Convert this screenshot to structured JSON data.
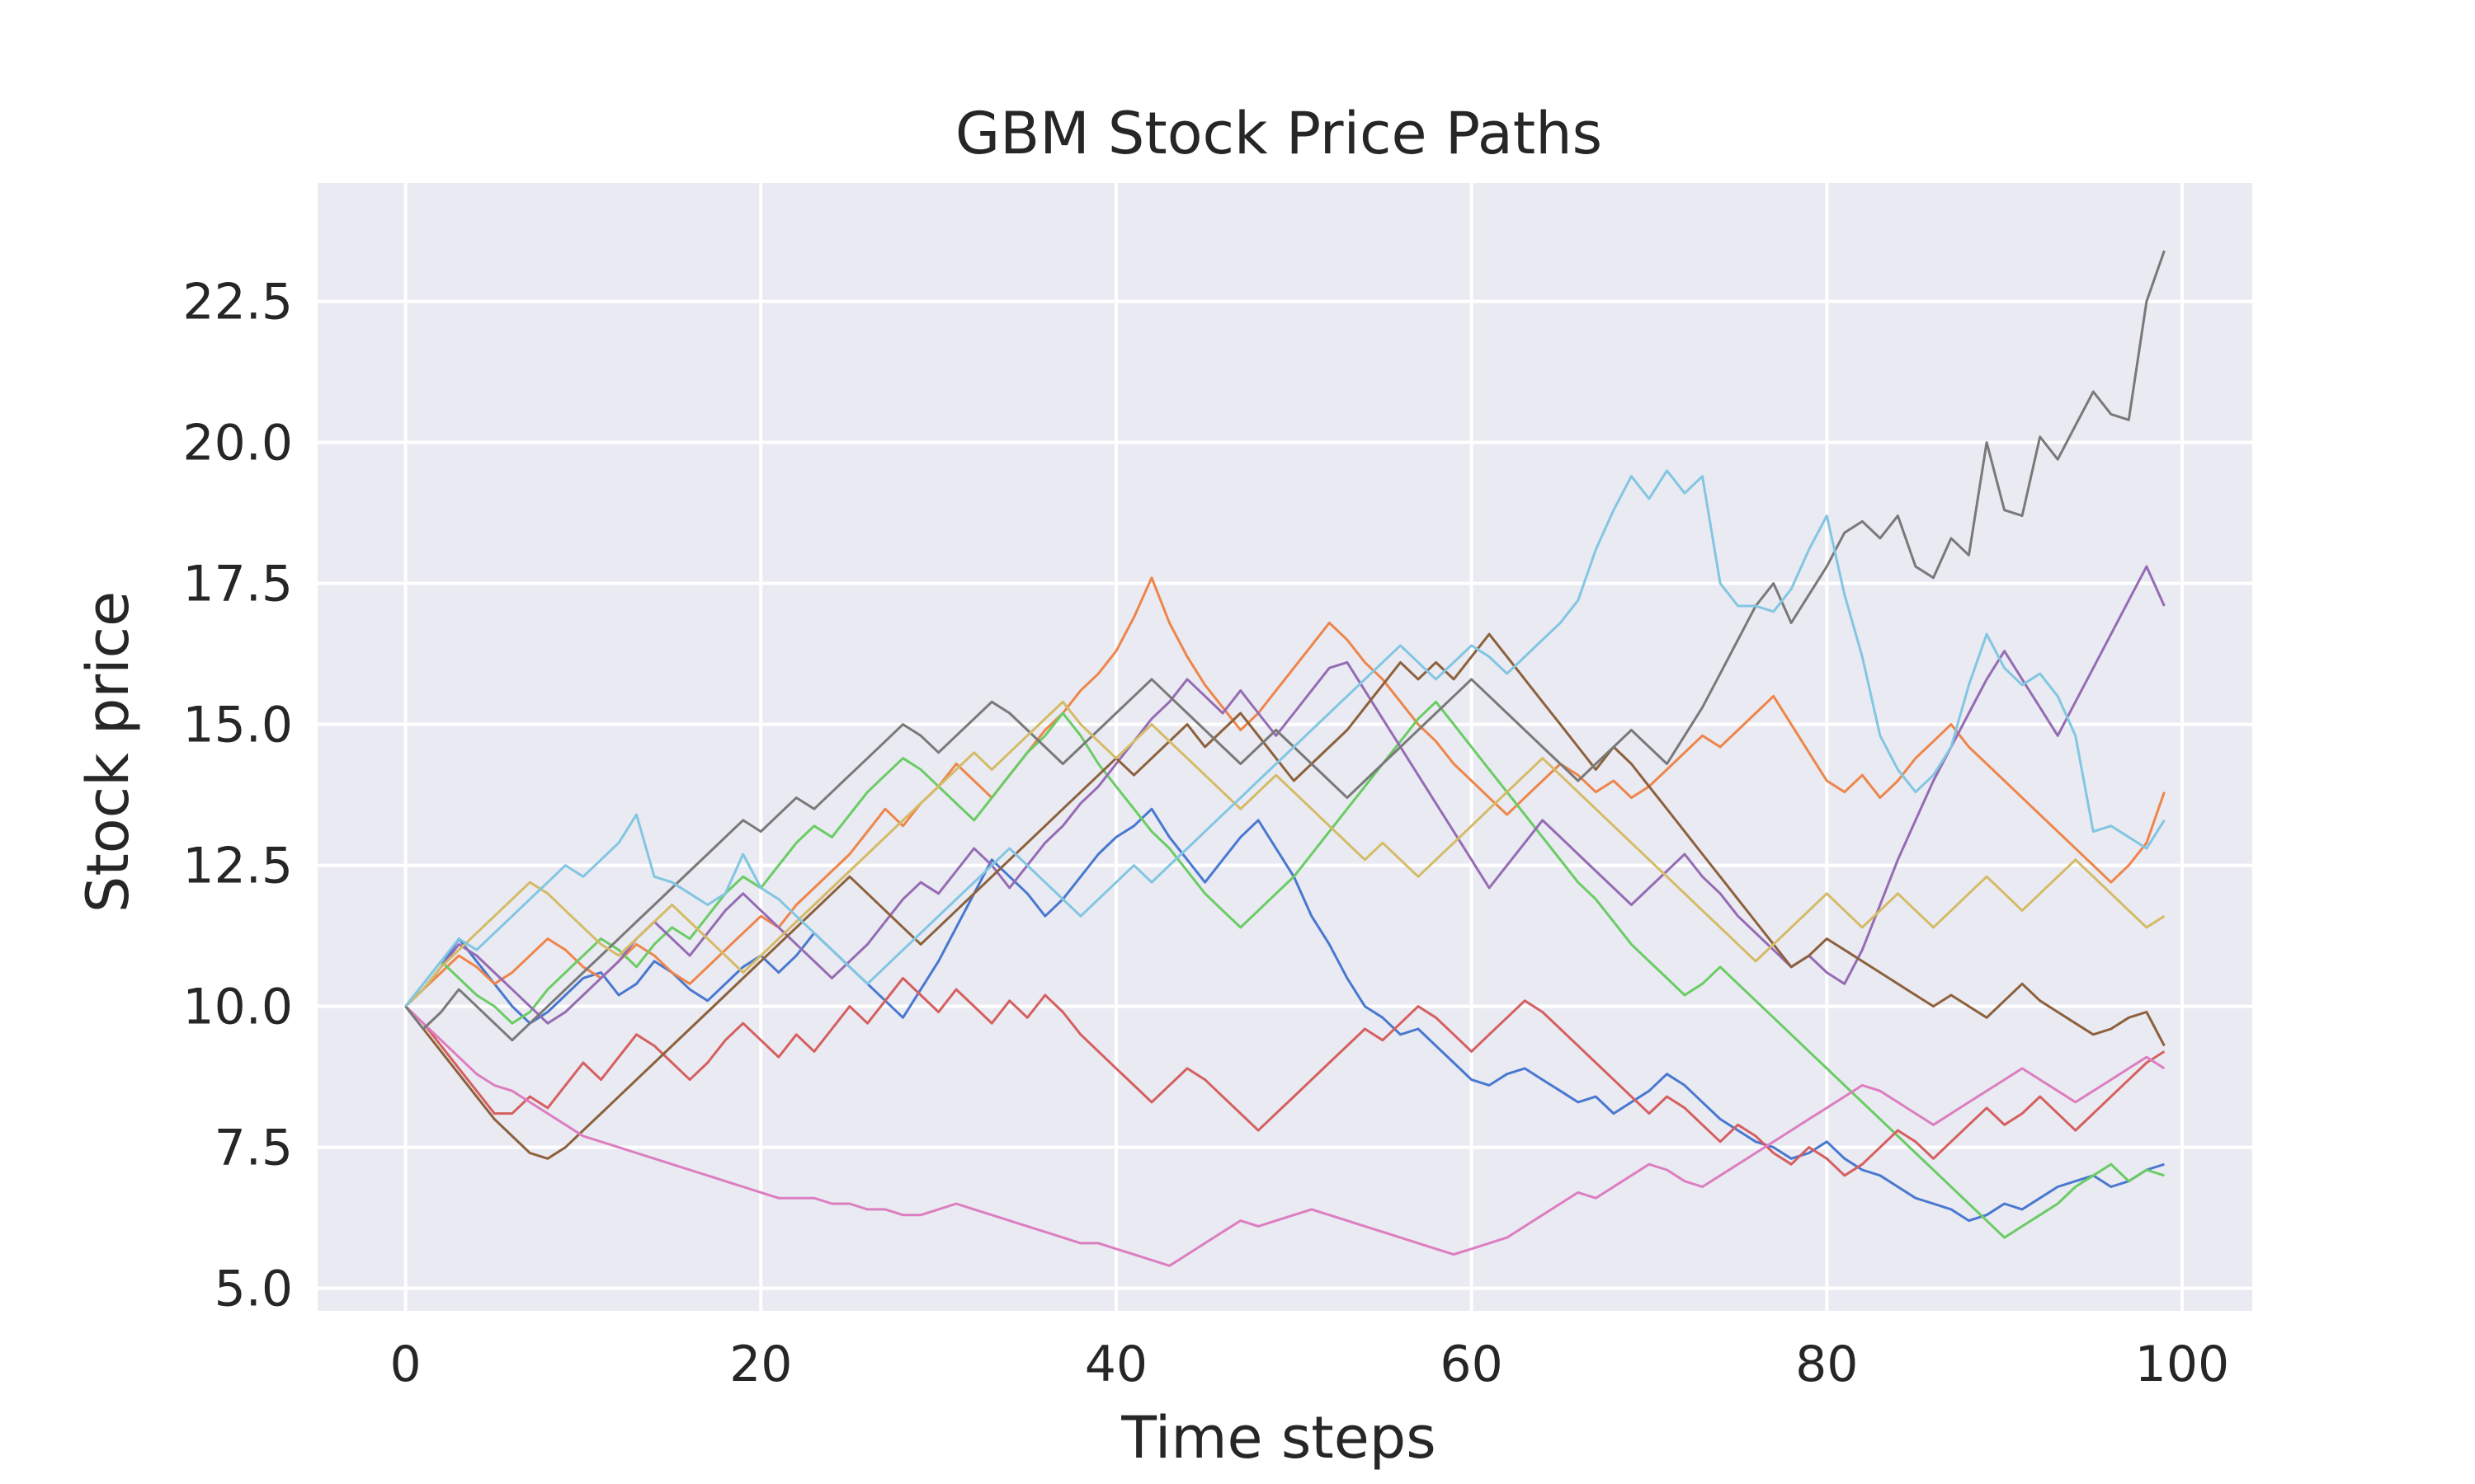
{
  "chart_data": {
    "type": "line",
    "title": "GBM Stock Price Paths",
    "xlabel": "Time steps",
    "ylabel": "Stock price",
    "xlim": [
      -4.95,
      103.95
    ],
    "ylim": [
      4.6,
      24.6
    ],
    "xticks": [
      0,
      20,
      40,
      60,
      80,
      100
    ],
    "yticks": [
      5.0,
      7.5,
      10.0,
      12.5,
      15.0,
      17.5,
      20.0,
      22.5
    ],
    "xtick_labels": [
      "0",
      "20",
      "40",
      "60",
      "80",
      "100"
    ],
    "ytick_labels": [
      "5.0",
      "7.5",
      "10.0",
      "12.5",
      "15.0",
      "17.5",
      "20.0",
      "22.5"
    ],
    "grid": true,
    "legend": "none",
    "background": "#eaeaf2",
    "grid_color": "#ffffff",
    "colors": [
      "#4878d0",
      "#ee854a",
      "#6acc64",
      "#d65f5f",
      "#956cb4",
      "#8c613c",
      "#dc7ec0",
      "#797979",
      "#d5bb67",
      "#82c6e2"
    ],
    "x_range": [
      0,
      99
    ],
    "series": [
      {
        "color": "#4878d0",
        "values": [
          10.0,
          10.3,
          10.7,
          11.2,
          10.8,
          10.4,
          10.0,
          9.7,
          9.9,
          10.2,
          10.5,
          10.6,
          10.2,
          10.4,
          10.8,
          10.6,
          10.3,
          10.1,
          10.4,
          10.7,
          10.9,
          10.6,
          10.9,
          11.3,
          11.0,
          10.7,
          10.4,
          10.1,
          9.8,
          10.3,
          10.8,
          11.4,
          12.0,
          12.6,
          12.3,
          12.0,
          11.6,
          11.9,
          12.3,
          12.7,
          13.0,
          13.2,
          13.5,
          13.0,
          12.6,
          12.2,
          12.6,
          13.0,
          13.3,
          12.8,
          12.3,
          11.6,
          11.1,
          10.5,
          10.0,
          9.8,
          9.5,
          9.6,
          9.3,
          9.0,
          8.7,
          8.6,
          8.8,
          8.9,
          8.7,
          8.5,
          8.3,
          8.4,
          8.1,
          8.3,
          8.5,
          8.8,
          8.6,
          8.3,
          8.0,
          7.8,
          7.6,
          7.5,
          7.3,
          7.4,
          7.6,
          7.3,
          7.1,
          7.0,
          6.8,
          6.6,
          6.5,
          6.4,
          6.2,
          6.3,
          6.5,
          6.4,
          6.6,
          6.8,
          6.9,
          7.0,
          6.8,
          6.9,
          7.1,
          7.2
        ]
      },
      {
        "color": "#ee854a",
        "values": [
          10.0,
          10.3,
          10.6,
          10.9,
          10.7,
          10.4,
          10.6,
          10.9,
          11.2,
          11.0,
          10.7,
          10.5,
          10.8,
          11.1,
          10.9,
          10.6,
          10.4,
          10.7,
          11.0,
          11.3,
          11.6,
          11.4,
          11.8,
          12.1,
          12.4,
          12.7,
          13.1,
          13.5,
          13.2,
          13.6,
          13.9,
          14.3,
          14.0,
          13.7,
          14.1,
          14.5,
          14.9,
          15.2,
          15.6,
          15.9,
          16.3,
          16.9,
          17.6,
          16.8,
          16.2,
          15.7,
          15.3,
          14.9,
          15.2,
          15.6,
          16.0,
          16.4,
          16.8,
          16.5,
          16.1,
          15.8,
          15.4,
          15.0,
          14.7,
          14.3,
          14.0,
          13.7,
          13.4,
          13.7,
          14.0,
          14.3,
          14.1,
          13.8,
          14.0,
          13.7,
          13.9,
          14.2,
          14.5,
          14.8,
          14.6,
          14.9,
          15.2,
          15.5,
          15.0,
          14.5,
          14.0,
          13.8,
          14.1,
          13.7,
          14.0,
          14.4,
          14.7,
          15.0,
          14.6,
          14.3,
          14.0,
          13.7,
          13.4,
          13.1,
          12.8,
          12.5,
          12.2,
          12.5,
          12.9,
          13.8
        ]
      },
      {
        "color": "#6acc64",
        "values": [
          10.0,
          10.4,
          10.8,
          10.5,
          10.2,
          10.0,
          9.7,
          9.9,
          10.3,
          10.6,
          10.9,
          11.2,
          11.0,
          10.7,
          11.1,
          11.4,
          11.2,
          11.6,
          12.0,
          12.3,
          12.1,
          12.5,
          12.9,
          13.2,
          13.0,
          13.4,
          13.8,
          14.1,
          14.4,
          14.2,
          13.9,
          13.6,
          13.3,
          13.7,
          14.1,
          14.5,
          14.8,
          15.2,
          14.8,
          14.3,
          13.9,
          13.5,
          13.1,
          12.8,
          12.4,
          12.0,
          11.7,
          11.4,
          11.7,
          12.0,
          12.3,
          12.7,
          13.1,
          13.5,
          13.9,
          14.3,
          14.7,
          15.1,
          15.4,
          15.0,
          14.6,
          14.2,
          13.8,
          13.4,
          13.0,
          12.6,
          12.2,
          11.9,
          11.5,
          11.1,
          10.8,
          10.5,
          10.2,
          10.4,
          10.7,
          10.4,
          10.1,
          9.8,
          9.5,
          9.2,
          8.9,
          8.6,
          8.3,
          8.0,
          7.7,
          7.4,
          7.1,
          6.8,
          6.5,
          6.2,
          5.9,
          6.1,
          6.3,
          6.5,
          6.8,
          7.0,
          7.2,
          6.9,
          7.1,
          7.0
        ]
      },
      {
        "color": "#d65f5f",
        "values": [
          10.0,
          9.7,
          9.3,
          8.9,
          8.5,
          8.1,
          8.1,
          8.4,
          8.2,
          8.6,
          9.0,
          8.7,
          9.1,
          9.5,
          9.3,
          9.0,
          8.7,
          9.0,
          9.4,
          9.7,
          9.4,
          9.1,
          9.5,
          9.2,
          9.6,
          10.0,
          9.7,
          10.1,
          10.5,
          10.2,
          9.9,
          10.3,
          10.0,
          9.7,
          10.1,
          9.8,
          10.2,
          9.9,
          9.5,
          9.2,
          8.9,
          8.6,
          8.3,
          8.6,
          8.9,
          8.7,
          8.4,
          8.1,
          7.8,
          8.1,
          8.4,
          8.7,
          9.0,
          9.3,
          9.6,
          9.4,
          9.7,
          10.0,
          9.8,
          9.5,
          9.2,
          9.5,
          9.8,
          10.1,
          9.9,
          9.6,
          9.3,
          9.0,
          8.7,
          8.4,
          8.1,
          8.4,
          8.2,
          7.9,
          7.6,
          7.9,
          7.7,
          7.4,
          7.2,
          7.5,
          7.3,
          7.0,
          7.2,
          7.5,
          7.8,
          7.6,
          7.3,
          7.6,
          7.9,
          8.2,
          7.9,
          8.1,
          8.4,
          8.1,
          7.8,
          8.1,
          8.4,
          8.7,
          9.0,
          9.2
        ]
      },
      {
        "color": "#956cb4",
        "values": [
          10.0,
          10.3,
          10.7,
          11.1,
          10.9,
          10.6,
          10.3,
          10.0,
          9.7,
          9.9,
          10.2,
          10.5,
          10.8,
          11.2,
          11.5,
          11.2,
          10.9,
          11.3,
          11.7,
          12.0,
          11.7,
          11.4,
          11.1,
          10.8,
          10.5,
          10.8,
          11.1,
          11.5,
          11.9,
          12.2,
          12.0,
          12.4,
          12.8,
          12.5,
          12.1,
          12.5,
          12.9,
          13.2,
          13.6,
          13.9,
          14.3,
          14.7,
          15.1,
          15.4,
          15.8,
          15.5,
          15.2,
          15.6,
          15.2,
          14.8,
          15.2,
          15.6,
          16.0,
          16.1,
          15.6,
          15.1,
          14.6,
          14.1,
          13.6,
          13.1,
          12.6,
          12.1,
          12.5,
          12.9,
          13.3,
          13.0,
          12.7,
          12.4,
          12.1,
          11.8,
          12.1,
          12.4,
          12.7,
          12.3,
          12.0,
          11.6,
          11.3,
          11.0,
          10.7,
          10.9,
          10.6,
          10.4,
          11.0,
          11.8,
          12.6,
          13.3,
          14.0,
          14.6,
          15.2,
          15.8,
          16.3,
          15.8,
          15.3,
          14.8,
          15.4,
          16.0,
          16.6,
          17.2,
          17.8,
          17.1
        ]
      },
      {
        "color": "#8c613c",
        "values": [
          10.0,
          9.6,
          9.2,
          8.8,
          8.4,
          8.0,
          7.7,
          7.4,
          7.3,
          7.5,
          7.8,
          8.1,
          8.4,
          8.7,
          9.0,
          9.3,
          9.6,
          9.9,
          10.2,
          10.5,
          10.8,
          11.1,
          11.4,
          11.7,
          12.0,
          12.3,
          12.0,
          11.7,
          11.4,
          11.1,
          11.4,
          11.7,
          12.0,
          12.3,
          12.6,
          12.9,
          13.2,
          13.5,
          13.8,
          14.1,
          14.4,
          14.1,
          14.4,
          14.7,
          15.0,
          14.6,
          14.9,
          15.2,
          14.8,
          14.4,
          14.0,
          14.3,
          14.6,
          14.9,
          15.3,
          15.7,
          16.1,
          15.8,
          16.1,
          15.8,
          16.2,
          16.6,
          16.2,
          15.8,
          15.4,
          15.0,
          14.6,
          14.2,
          14.6,
          14.3,
          13.9,
          13.5,
          13.1,
          12.7,
          12.3,
          11.9,
          11.5,
          11.1,
          10.7,
          10.9,
          11.2,
          11.0,
          10.8,
          10.6,
          10.4,
          10.2,
          10.0,
          10.2,
          10.0,
          9.8,
          10.1,
          10.4,
          10.1,
          9.9,
          9.7,
          9.5,
          9.6,
          9.8,
          9.9,
          9.3
        ]
      },
      {
        "color": "#dc7ec0",
        "values": [
          10.0,
          9.7,
          9.4,
          9.1,
          8.8,
          8.6,
          8.5,
          8.3,
          8.1,
          7.9,
          7.7,
          7.6,
          7.5,
          7.4,
          7.3,
          7.2,
          7.1,
          7.0,
          6.9,
          6.8,
          6.7,
          6.6,
          6.6,
          6.6,
          6.5,
          6.5,
          6.4,
          6.4,
          6.3,
          6.3,
          6.4,
          6.5,
          6.4,
          6.3,
          6.2,
          6.1,
          6.0,
          5.9,
          5.8,
          5.8,
          5.7,
          5.6,
          5.5,
          5.4,
          5.6,
          5.8,
          6.0,
          6.2,
          6.1,
          6.2,
          6.3,
          6.4,
          6.3,
          6.2,
          6.1,
          6.0,
          5.9,
          5.8,
          5.7,
          5.6,
          5.7,
          5.8,
          5.9,
          6.1,
          6.3,
          6.5,
          6.7,
          6.6,
          6.8,
          7.0,
          7.2,
          7.1,
          6.9,
          6.8,
          7.0,
          7.2,
          7.4,
          7.6,
          7.8,
          8.0,
          8.2,
          8.4,
          8.6,
          8.5,
          8.3,
          8.1,
          7.9,
          8.1,
          8.3,
          8.5,
          8.7,
          8.9,
          8.7,
          8.5,
          8.3,
          8.5,
          8.7,
          8.9,
          9.1,
          8.9
        ]
      },
      {
        "color": "#797979",
        "values": [
          10.0,
          9.6,
          9.9,
          10.3,
          10.0,
          9.7,
          9.4,
          9.7,
          10.0,
          10.3,
          10.6,
          10.9,
          11.2,
          11.5,
          11.8,
          12.1,
          12.4,
          12.7,
          13.0,
          13.3,
          13.1,
          13.4,
          13.7,
          13.5,
          13.8,
          14.1,
          14.4,
          14.7,
          15.0,
          14.8,
          14.5,
          14.8,
          15.1,
          15.4,
          15.2,
          14.9,
          14.6,
          14.3,
          14.6,
          14.9,
          15.2,
          15.5,
          15.8,
          15.5,
          15.2,
          14.9,
          14.6,
          14.3,
          14.6,
          14.9,
          14.6,
          14.3,
          14.0,
          13.7,
          14.0,
          14.3,
          14.6,
          14.9,
          15.2,
          15.5,
          15.8,
          15.5,
          15.2,
          14.9,
          14.6,
          14.3,
          14.0,
          14.3,
          14.6,
          14.9,
          14.6,
          14.3,
          14.8,
          15.3,
          15.9,
          16.5,
          17.1,
          17.5,
          16.8,
          17.3,
          17.8,
          18.4,
          18.6,
          18.3,
          18.7,
          17.8,
          17.6,
          18.3,
          18.0,
          20.0,
          18.8,
          18.7,
          20.1,
          19.7,
          20.3,
          20.9,
          20.5,
          20.4,
          22.5,
          23.4
        ]
      },
      {
        "color": "#d5bb67",
        "values": [
          10.0,
          10.3,
          10.7,
          11.0,
          11.3,
          11.6,
          11.9,
          12.2,
          12.0,
          11.7,
          11.4,
          11.1,
          10.9,
          11.2,
          11.5,
          11.8,
          11.5,
          11.2,
          10.9,
          10.6,
          10.9,
          11.2,
          11.5,
          11.8,
          12.1,
          12.4,
          12.7,
          13.0,
          13.3,
          13.6,
          13.9,
          14.2,
          14.5,
          14.2,
          14.5,
          14.8,
          15.1,
          15.4,
          15.0,
          14.7,
          14.4,
          14.7,
          15.0,
          14.7,
          14.4,
          14.1,
          13.8,
          13.5,
          13.8,
          14.1,
          13.8,
          13.5,
          13.2,
          12.9,
          12.6,
          12.9,
          12.6,
          12.3,
          12.6,
          12.9,
          13.2,
          13.5,
          13.8,
          14.1,
          14.4,
          14.1,
          13.8,
          13.5,
          13.2,
          12.9,
          12.6,
          12.3,
          12.0,
          11.7,
          11.4,
          11.1,
          10.8,
          11.1,
          11.4,
          11.7,
          12.0,
          11.7,
          11.4,
          11.7,
          12.0,
          11.7,
          11.4,
          11.7,
          12.0,
          12.3,
          12.0,
          11.7,
          12.0,
          12.3,
          12.6,
          12.3,
          12.0,
          11.7,
          11.4,
          11.6
        ]
      },
      {
        "color": "#82c6e2",
        "values": [
          10.0,
          10.4,
          10.8,
          11.2,
          11.0,
          11.3,
          11.6,
          11.9,
          12.2,
          12.5,
          12.3,
          12.6,
          12.9,
          13.4,
          12.3,
          12.2,
          12.0,
          11.8,
          12.0,
          12.7,
          12.1,
          11.9,
          11.6,
          11.3,
          11.0,
          10.7,
          10.4,
          10.7,
          11.0,
          11.3,
          11.6,
          11.9,
          12.2,
          12.5,
          12.8,
          12.5,
          12.2,
          11.9,
          11.6,
          11.9,
          12.2,
          12.5,
          12.2,
          12.5,
          12.8,
          13.1,
          13.4,
          13.7,
          14.0,
          14.3,
          14.6,
          14.9,
          15.2,
          15.5,
          15.8,
          16.1,
          16.4,
          16.1,
          15.8,
          16.1,
          16.4,
          16.2,
          15.9,
          16.2,
          16.5,
          16.8,
          17.2,
          18.1,
          18.8,
          19.4,
          19.0,
          19.5,
          19.1,
          19.4,
          17.5,
          17.1,
          17.1,
          17.0,
          17.4,
          18.1,
          18.7,
          17.3,
          16.2,
          14.8,
          14.2,
          13.8,
          14.1,
          14.6,
          15.7,
          16.6,
          16.0,
          15.7,
          15.9,
          15.5,
          14.8,
          13.1,
          13.2,
          13.0,
          12.8,
          13.3
        ]
      }
    ]
  }
}
